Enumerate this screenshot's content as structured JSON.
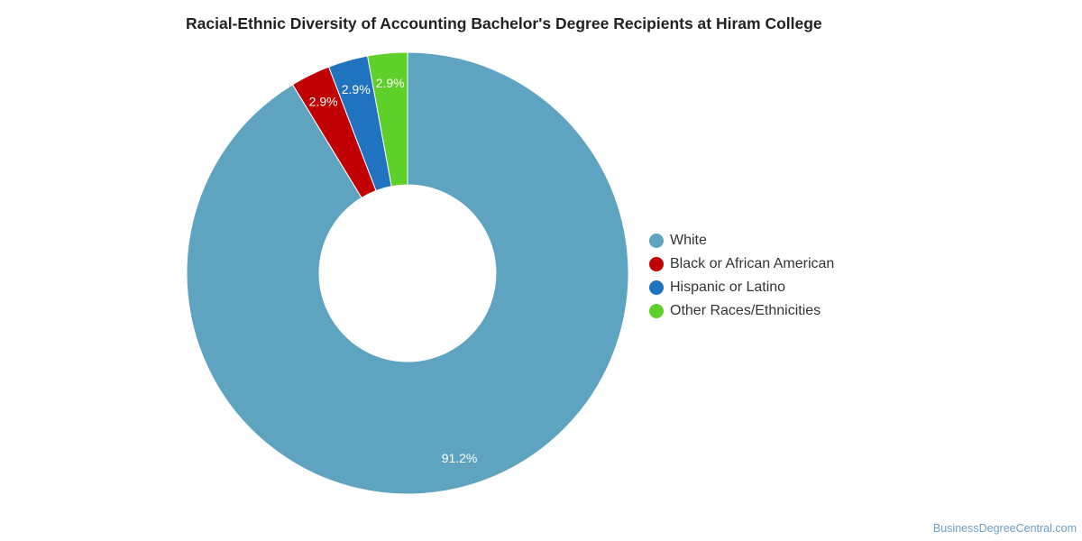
{
  "chart_data": {
    "type": "pie",
    "title": "Racial-Ethnic Diversity of Accounting Bachelor's Degree Recipients at Hiram College",
    "categories": [
      "White",
      "Black or African American",
      "Hispanic or Latino",
      "Other Races/Ethnicities"
    ],
    "values": [
      91.2,
      2.9,
      2.9,
      2.9
    ],
    "labels": [
      "91.2%",
      "2.9%",
      "2.9%",
      "2.9%"
    ],
    "colors": [
      "#5ea3bf",
      "#c00000",
      "#2073be",
      "#5fcf29"
    ],
    "donut": true,
    "legend_position": "right"
  },
  "credit": "BusinessDegreeCentral.com"
}
